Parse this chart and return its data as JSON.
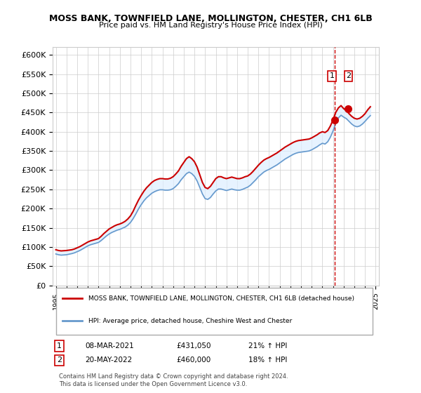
{
  "title": "MOSS BANK, TOWNFIELD LANE, MOLLINGTON, CHESTER, CH1 6LB",
  "subtitle": "Price paid vs. HM Land Registry's House Price Index (HPI)",
  "ylabel_ticks": [
    "£0",
    "£50K",
    "£100K",
    "£150K",
    "£200K",
    "£250K",
    "£300K",
    "£350K",
    "£400K",
    "£450K",
    "£500K",
    "£550K",
    "£600K"
  ],
  "ytick_values": [
    0,
    50000,
    100000,
    150000,
    200000,
    250000,
    300000,
    350000,
    400000,
    450000,
    500000,
    550000,
    600000
  ],
  "ylim": [
    0,
    620000
  ],
  "xlim_start": 1995,
  "xlim_end": 2025,
  "xtick_years": [
    1995,
    1996,
    1997,
    1998,
    1999,
    2000,
    2001,
    2002,
    2003,
    2004,
    2005,
    2006,
    2007,
    2008,
    2009,
    2010,
    2011,
    2012,
    2013,
    2014,
    2015,
    2016,
    2017,
    2018,
    2019,
    2020,
    2021,
    2022,
    2023,
    2024,
    2025
  ],
  "red_line_color": "#cc0000",
  "blue_line_color": "#6699cc",
  "shaded_region_color": "#ddeeff",
  "marker1_date": 2021.18,
  "marker1_value": 431050,
  "marker2_date": 2022.38,
  "marker2_value": 460000,
  "dashed_line_x": 2021.18,
  "legend_line1": "MOSS BANK, TOWNFIELD LANE, MOLLINGTON, CHESTER, CH1 6LB (detached house)",
  "legend_line2": "HPI: Average price, detached house, Cheshire West and Chester",
  "table_row1": [
    "1",
    "08-MAR-2021",
    "£431,050",
    "21% ↑ HPI"
  ],
  "table_row2": [
    "2",
    "20-MAY-2022",
    "£460,000",
    "18% ↑ HPI"
  ],
  "footer": "Contains HM Land Registry data © Crown copyright and database right 2024.\nThis data is licensed under the Open Government Licence v3.0.",
  "background_color": "#ffffff",
  "grid_color": "#cccccc",
  "hpi_red_data": {
    "years": [
      1995.0,
      1995.25,
      1995.5,
      1995.75,
      1996.0,
      1996.25,
      1996.5,
      1996.75,
      1997.0,
      1997.25,
      1997.5,
      1997.75,
      1998.0,
      1998.25,
      1998.5,
      1998.75,
      1999.0,
      1999.25,
      1999.5,
      1999.75,
      2000.0,
      2000.25,
      2000.5,
      2000.75,
      2001.0,
      2001.25,
      2001.5,
      2001.75,
      2002.0,
      2002.25,
      2002.5,
      2002.75,
      2003.0,
      2003.25,
      2003.5,
      2003.75,
      2004.0,
      2004.25,
      2004.5,
      2004.75,
      2005.0,
      2005.25,
      2005.5,
      2005.75,
      2006.0,
      2006.25,
      2006.5,
      2006.75,
      2007.0,
      2007.25,
      2007.5,
      2007.75,
      2008.0,
      2008.25,
      2008.5,
      2008.75,
      2009.0,
      2009.25,
      2009.5,
      2009.75,
      2010.0,
      2010.25,
      2010.5,
      2010.75,
      2011.0,
      2011.25,
      2011.5,
      2011.75,
      2012.0,
      2012.25,
      2012.5,
      2012.75,
      2013.0,
      2013.25,
      2013.5,
      2013.75,
      2014.0,
      2014.25,
      2014.5,
      2014.75,
      2015.0,
      2015.25,
      2015.5,
      2015.75,
      2016.0,
      2016.25,
      2016.5,
      2016.75,
      2017.0,
      2017.25,
      2017.5,
      2017.75,
      2018.0,
      2018.25,
      2018.5,
      2018.75,
      2019.0,
      2019.25,
      2019.5,
      2019.75,
      2020.0,
      2020.25,
      2020.5,
      2020.75,
      2021.0,
      2021.25,
      2021.5,
      2021.75,
      2022.0,
      2022.25,
      2022.5,
      2022.75,
      2023.0,
      2023.25,
      2023.5,
      2023.75,
      2024.0,
      2024.25,
      2024.5
    ],
    "values": [
      93000,
      91000,
      90000,
      90500,
      91000,
      92000,
      93000,
      95000,
      98000,
      101000,
      105000,
      109000,
      113000,
      116000,
      118000,
      120000,
      122000,
      128000,
      135000,
      141000,
      147000,
      151000,
      155000,
      158000,
      160000,
      163000,
      167000,
      173000,
      181000,
      193000,
      208000,
      222000,
      234000,
      245000,
      254000,
      261000,
      268000,
      273000,
      276000,
      278000,
      278000,
      277000,
      277000,
      279000,
      283000,
      290000,
      298000,
      310000,
      320000,
      330000,
      335000,
      330000,
      322000,
      308000,
      288000,
      268000,
      255000,
      252000,
      258000,
      268000,
      278000,
      283000,
      283000,
      280000,
      278000,
      280000,
      282000,
      280000,
      278000,
      278000,
      280000,
      283000,
      285000,
      290000,
      297000,
      305000,
      313000,
      320000,
      326000,
      330000,
      333000,
      337000,
      341000,
      345000,
      350000,
      355000,
      360000,
      364000,
      368000,
      372000,
      375000,
      377000,
      378000,
      379000,
      380000,
      381000,
      384000,
      388000,
      392000,
      397000,
      400000,
      398000,
      403000,
      415000,
      431050,
      450000,
      462000,
      468000,
      460000,
      455000,
      447000,
      440000,
      435000,
      433000,
      435000,
      440000,
      447000,
      457000,
      465000
    ]
  },
  "hpi_blue_data": {
    "years": [
      1995.0,
      1995.25,
      1995.5,
      1995.75,
      1996.0,
      1996.25,
      1996.5,
      1996.75,
      1997.0,
      1997.25,
      1997.5,
      1997.75,
      1998.0,
      1998.25,
      1998.5,
      1998.75,
      1999.0,
      1999.25,
      1999.5,
      1999.75,
      2000.0,
      2000.25,
      2000.5,
      2000.75,
      2001.0,
      2001.25,
      2001.5,
      2001.75,
      2002.0,
      2002.25,
      2002.5,
      2002.75,
      2003.0,
      2003.25,
      2003.5,
      2003.75,
      2004.0,
      2004.25,
      2004.5,
      2004.75,
      2005.0,
      2005.25,
      2005.5,
      2005.75,
      2006.0,
      2006.25,
      2006.5,
      2006.75,
      2007.0,
      2007.25,
      2007.5,
      2007.75,
      2008.0,
      2008.25,
      2008.5,
      2008.75,
      2009.0,
      2009.25,
      2009.5,
      2009.75,
      2010.0,
      2010.25,
      2010.5,
      2010.75,
      2011.0,
      2011.25,
      2011.5,
      2011.75,
      2012.0,
      2012.25,
      2012.5,
      2012.75,
      2013.0,
      2013.25,
      2013.5,
      2013.75,
      2014.0,
      2014.25,
      2014.5,
      2014.75,
      2015.0,
      2015.25,
      2015.5,
      2015.75,
      2016.0,
      2016.25,
      2016.5,
      2016.75,
      2017.0,
      2017.25,
      2017.5,
      2017.75,
      2018.0,
      2018.25,
      2018.5,
      2018.75,
      2019.0,
      2019.25,
      2019.5,
      2019.75,
      2020.0,
      2020.25,
      2020.5,
      2020.75,
      2021.0,
      2021.25,
      2021.5,
      2021.75,
      2022.0,
      2022.25,
      2022.5,
      2022.75,
      2023.0,
      2023.25,
      2023.5,
      2023.75,
      2024.0,
      2024.25,
      2024.5
    ],
    "values": [
      82000,
      80000,
      79000,
      79500,
      80000,
      81500,
      83000,
      85000,
      88000,
      91000,
      95000,
      99000,
      103000,
      106000,
      108000,
      110000,
      112000,
      117000,
      123000,
      129000,
      134000,
      138000,
      141000,
      144000,
      146000,
      149000,
      152000,
      157000,
      164000,
      174000,
      186000,
      199000,
      210000,
      220000,
      228000,
      234000,
      240000,
      244000,
      247000,
      249000,
      249000,
      248000,
      248000,
      249000,
      252000,
      258000,
      265000,
      275000,
      283000,
      291000,
      295000,
      291000,
      284000,
      272000,
      255000,
      238000,
      226000,
      224000,
      229000,
      238000,
      246000,
      251000,
      251000,
      249000,
      247000,
      249000,
      251000,
      249000,
      248000,
      248000,
      250000,
      253000,
      256000,
      261000,
      268000,
      275000,
      283000,
      289000,
      295000,
      299000,
      302000,
      306000,
      310000,
      314000,
      319000,
      324000,
      329000,
      333000,
      337000,
      341000,
      344000,
      346000,
      347000,
      348000,
      349000,
      350000,
      353000,
      357000,
      361000,
      366000,
      370000,
      368000,
      374000,
      386000,
      402000,
      422000,
      436000,
      443000,
      438000,
      434000,
      427000,
      420000,
      415000,
      413000,
      415000,
      420000,
      427000,
      435000,
      442000
    ]
  }
}
